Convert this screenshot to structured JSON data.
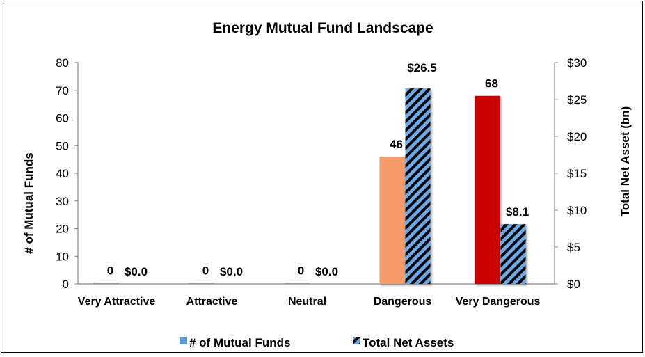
{
  "chart_data": {
    "type": "bar",
    "title": "Energy Mutual Fund Landscape",
    "categories": [
      "Very Attractive",
      "Attractive",
      "Neutral",
      "Dangerous",
      "Very Dangerous"
    ],
    "ylabel": "# of Mutual Funds",
    "y2label": "Total Net Asset (bn)",
    "ylim": [
      0,
      80
    ],
    "y2lim": [
      0,
      30
    ],
    "yticks": [
      "0",
      "10",
      "20",
      "30",
      "40",
      "50",
      "60",
      "70",
      "80"
    ],
    "y2ticks": [
      "$0",
      "$5",
      "$10",
      "$15",
      "$20",
      "$25",
      "$30"
    ],
    "series": [
      {
        "name": "# of Mutual Funds",
        "axis": "left",
        "values": [
          0,
          0,
          0,
          46,
          68
        ],
        "labels": [
          "0",
          "0",
          "0",
          "46",
          "68"
        ],
        "colors": [
          "#f79a6a",
          "#f79a6a",
          "#f79a6a",
          "#f79a6a",
          "#cc0000"
        ],
        "legend_color": "#5b9bd5"
      },
      {
        "name": "Total Net Assets",
        "axis": "right",
        "values": [
          0.0,
          0.0,
          0.0,
          26.5,
          8.1
        ],
        "labels": [
          "$0.0",
          "$0.0",
          "$0.0",
          "$26.5",
          "$8.1"
        ],
        "pattern": "diagonal-stripes",
        "stripe_colors": [
          "#6aa8e8",
          "#000000"
        ]
      }
    ],
    "grid": false,
    "legend_position": "bottom"
  }
}
